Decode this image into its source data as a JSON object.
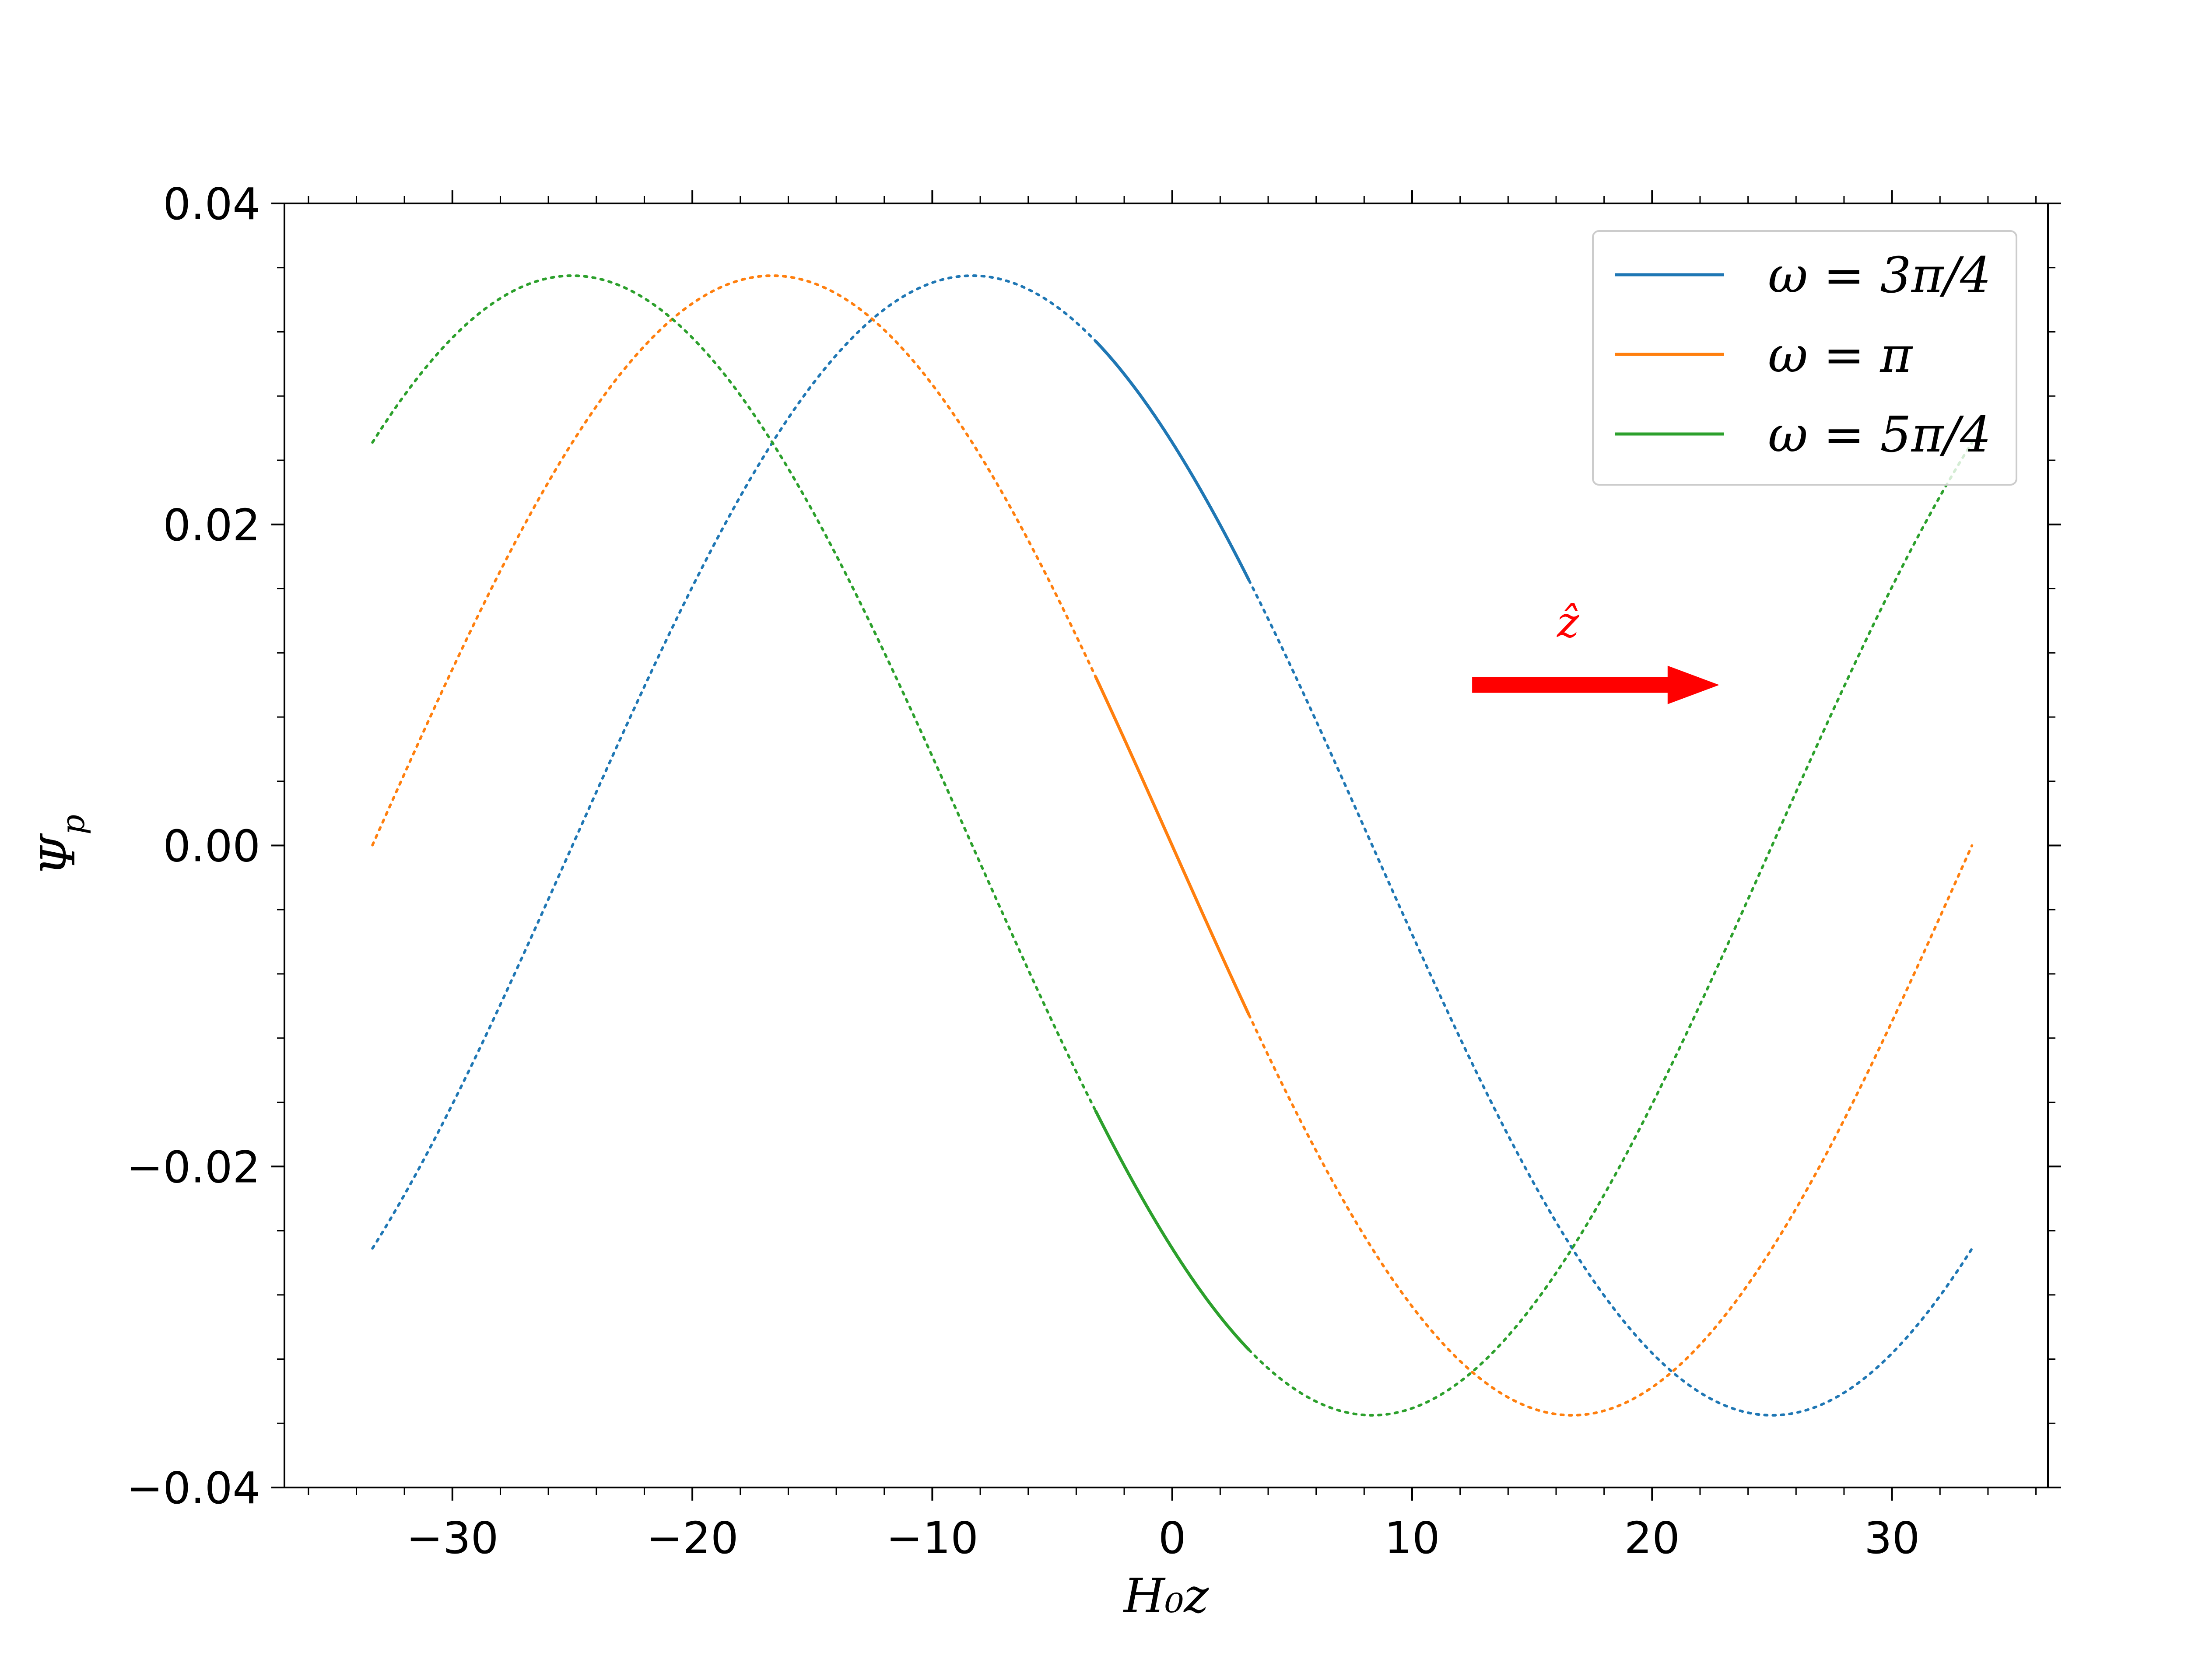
{
  "chart_data": {
    "type": "line",
    "xlabel": "H₀z",
    "ylabel": "Ψp",
    "xlim": [
      -37,
      36.5
    ],
    "ylim": [
      -0.04,
      0.04
    ],
    "xticks": [
      -30,
      -20,
      -10,
      0,
      10,
      20,
      30
    ],
    "xtick_labels": [
      "−30",
      "−20",
      "−10",
      "0",
      "10",
      "20",
      "30"
    ],
    "yticks": [
      -0.04,
      -0.02,
      0.0,
      0.02,
      0.04
    ],
    "ytick_labels": [
      "−0.04",
      "−0.02",
      "0.00",
      "0.02",
      "0.04"
    ],
    "grid": false,
    "legend_position": "top-right",
    "domain": [
      -33.33,
      33.33
    ],
    "solid_segment": [
      -3.2,
      3.2
    ],
    "series": [
      {
        "name": "ω = 3π/4",
        "color": "#1f77b4",
        "amplitude": 0.0355,
        "wavelength": 66.67,
        "peak_x": -8.33,
        "sample_points": [
          [
            -33.33,
            -0.0251
          ],
          [
            -25.0,
            0.0
          ],
          [
            -8.33,
            0.0355
          ],
          [
            3.2,
            0.0166
          ],
          [
            8.33,
            0.0
          ],
          [
            25.0,
            -0.0355
          ],
          [
            33.33,
            -0.0251
          ]
        ]
      },
      {
        "name": "ω = π",
        "color": "#ff7f0e",
        "amplitude": 0.0355,
        "wavelength": 66.67,
        "peak_x": -16.67,
        "sample_points": [
          [
            -33.33,
            0.0
          ],
          [
            -16.67,
            0.0355
          ],
          [
            -3.2,
            0.0106
          ],
          [
            0.0,
            0.0
          ],
          [
            3.2,
            -0.0106
          ],
          [
            16.67,
            -0.0355
          ],
          [
            33.33,
            0.0
          ]
        ]
      },
      {
        "name": "ω = 5π/4",
        "color": "#2ca02c",
        "amplitude": 0.0355,
        "wavelength": 66.67,
        "peak_x": -25.0,
        "sample_points": [
          [
            -33.33,
            0.0251
          ],
          [
            -25.0,
            0.0355
          ],
          [
            -8.33,
            0.0
          ],
          [
            3.2,
            -0.0316
          ],
          [
            8.33,
            -0.0355
          ],
          [
            25.0,
            0.0
          ],
          [
            33.33,
            0.0251
          ]
        ]
      }
    ],
    "annotations": [
      {
        "text": "ẑ",
        "color": "#ff0000",
        "x": 16.5,
        "y": 0.013
      }
    ],
    "arrow": {
      "color": "#ff0000",
      "from": [
        12.5,
        0.01
      ],
      "to": [
        22.8,
        0.01
      ]
    }
  }
}
